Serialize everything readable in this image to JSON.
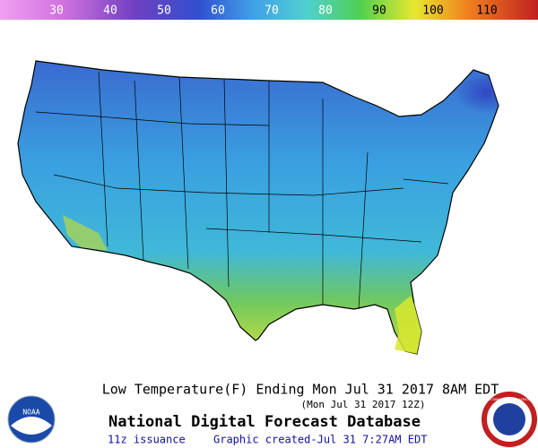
{
  "legend": {
    "labels": [
      30,
      40,
      50,
      60,
      70,
      80,
      90,
      100,
      110
    ]
  },
  "caption": {
    "title": "Low Temperature(F) Ending Mon Jul 31 2017  8AM EDT",
    "subtitle": "(Mon Jul 31 2017 12Z)",
    "heading": "National Digital Forecast Database",
    "issuance": "11z issuance",
    "created": "Graphic created-Jul 31  7:27AM EDT"
  },
  "logos": {
    "left": "NOAA",
    "right": "NATIONAL WEATHER SERVICE"
  }
}
